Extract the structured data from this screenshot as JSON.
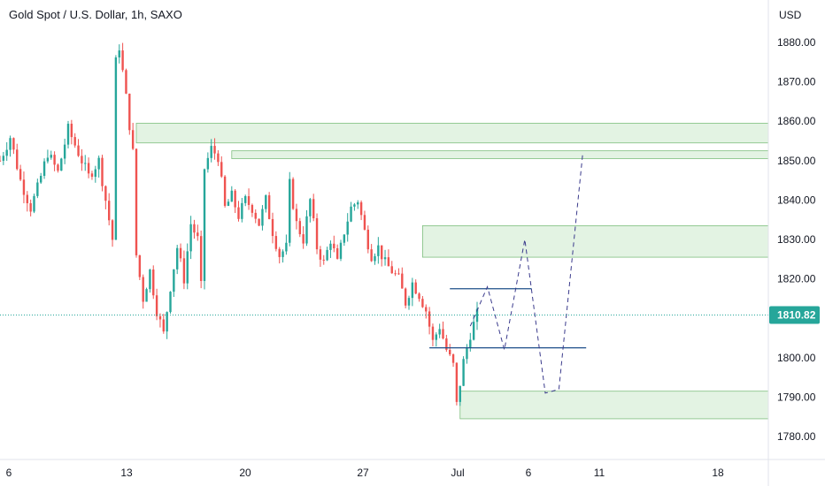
{
  "header": {
    "title": "Gold Spot / U.S. Dollar, 1h, SAXO"
  },
  "colors": {
    "up": "#26a69a",
    "down": "#ef5350",
    "zone_fill": "#e3f3e3",
    "zone_stroke": "#7fbf7f",
    "line": "#1e4f8a",
    "path": "#3a3a8c",
    "price_badge": "#26a69a"
  },
  "chart_data": {
    "type": "candlestick",
    "title": "Gold Spot / U.S. Dollar, 1h, SAXO",
    "y_axis_label": "USD",
    "ylim": [
      1775,
      1887
    ],
    "y_ticks": [
      1780.0,
      1790.0,
      1800.0,
      1810.0,
      1820.0,
      1830.0,
      1840.0,
      1850.0,
      1860.0,
      1870.0,
      1880.0
    ],
    "y_tick_labels": [
      "1780.00",
      "1790.00",
      "1800.00",
      "1810.00",
      "1820.00",
      "1830.00",
      "1840.00",
      "1850.00",
      "1860.00",
      "1870.00",
      "1880.00"
    ],
    "x_tick_labels": [
      "6",
      "13",
      "20",
      "27",
      "Jul",
      "6",
      "11",
      "18"
    ],
    "last_price": 1810.82,
    "last_price_label": "1810.82",
    "price_path": [
      {
        "x": 0,
        "y": 1850
      },
      {
        "x": 3,
        "y": 1856
      },
      {
        "x": 6,
        "y": 1845
      },
      {
        "x": 9,
        "y": 1838
      },
      {
        "x": 11,
        "y": 1843
      },
      {
        "x": 14,
        "y": 1852
      },
      {
        "x": 17,
        "y": 1847
      },
      {
        "x": 20,
        "y": 1858
      },
      {
        "x": 23,
        "y": 1852
      },
      {
        "x": 26,
        "y": 1846
      },
      {
        "x": 29,
        "y": 1850
      },
      {
        "x": 31,
        "y": 1840
      },
      {
        "x": 33,
        "y": 1830
      },
      {
        "x": 34,
        "y": 1875
      },
      {
        "x": 35,
        "y": 1879
      },
      {
        "x": 37,
        "y": 1866
      },
      {
        "x": 39,
        "y": 1852
      },
      {
        "x": 40,
        "y": 1826
      },
      {
        "x": 42,
        "y": 1815
      },
      {
        "x": 44,
        "y": 1822
      },
      {
        "x": 46,
        "y": 1812
      },
      {
        "x": 48,
        "y": 1806
      },
      {
        "x": 50,
        "y": 1818
      },
      {
        "x": 52,
        "y": 1828
      },
      {
        "x": 54,
        "y": 1820
      },
      {
        "x": 56,
        "y": 1834
      },
      {
        "x": 58,
        "y": 1830
      },
      {
        "x": 59,
        "y": 1818
      },
      {
        "x": 60,
        "y": 1848
      },
      {
        "x": 62,
        "y": 1853
      },
      {
        "x": 64,
        "y": 1851
      },
      {
        "x": 66,
        "y": 1838
      },
      {
        "x": 68,
        "y": 1841
      },
      {
        "x": 70,
        "y": 1836
      },
      {
        "x": 72,
        "y": 1840
      },
      {
        "x": 74,
        "y": 1838
      },
      {
        "x": 76,
        "y": 1834
      },
      {
        "x": 78,
        "y": 1840
      },
      {
        "x": 80,
        "y": 1832
      },
      {
        "x": 82,
        "y": 1826
      },
      {
        "x": 84,
        "y": 1828
      },
      {
        "x": 85,
        "y": 1844
      },
      {
        "x": 87,
        "y": 1834
      },
      {
        "x": 89,
        "y": 1830
      },
      {
        "x": 91,
        "y": 1840
      },
      {
        "x": 93,
        "y": 1828
      },
      {
        "x": 95,
        "y": 1824
      },
      {
        "x": 97,
        "y": 1830
      },
      {
        "x": 99,
        "y": 1824
      },
      {
        "x": 101,
        "y": 1832
      },
      {
        "x": 103,
        "y": 1838
      },
      {
        "x": 105,
        "y": 1840
      },
      {
        "x": 107,
        "y": 1832
      },
      {
        "x": 109,
        "y": 1826
      },
      {
        "x": 111,
        "y": 1828
      },
      {
        "x": 113,
        "y": 1824
      },
      {
        "x": 115,
        "y": 1822
      },
      {
        "x": 117,
        "y": 1820
      },
      {
        "x": 119,
        "y": 1814
      },
      {
        "x": 121,
        "y": 1819
      },
      {
        "x": 123,
        "y": 1816
      },
      {
        "x": 125,
        "y": 1812
      },
      {
        "x": 127,
        "y": 1804
      },
      {
        "x": 129,
        "y": 1808
      },
      {
        "x": 131,
        "y": 1802
      },
      {
        "x": 133,
        "y": 1798
      },
      {
        "x": 134,
        "y": 1788
      },
      {
        "x": 136,
        "y": 1799
      },
      {
        "x": 138,
        "y": 1806
      },
      {
        "x": 140,
        "y": 1811
      }
    ],
    "zones": [
      {
        "x0": 40,
        "x1": 230,
        "y0": 1854.5,
        "y1": 1859.5
      },
      {
        "x0": 68,
        "x1": 230,
        "y0": 1850.5,
        "y1": 1852.5
      },
      {
        "x0": 124,
        "x1": 230,
        "y0": 1825.5,
        "y1": 1833.5
      },
      {
        "x0": 135,
        "x1": 230,
        "y0": 1784.5,
        "y1": 1791.5
      }
    ],
    "levels": [
      {
        "x0": 132,
        "x1": 156,
        "y": 1817.5
      },
      {
        "x0": 126,
        "x1": 172,
        "y": 1802.5
      }
    ],
    "projection": [
      {
        "x": 138,
        "y": 1808
      },
      {
        "x": 143,
        "y": 1818
      },
      {
        "x": 148,
        "y": 1802
      },
      {
        "x": 154,
        "y": 1830
      },
      {
        "x": 160,
        "y": 1791
      },
      {
        "x": 164,
        "y": 1792
      },
      {
        "x": 171,
        "y": 1852
      }
    ]
  }
}
